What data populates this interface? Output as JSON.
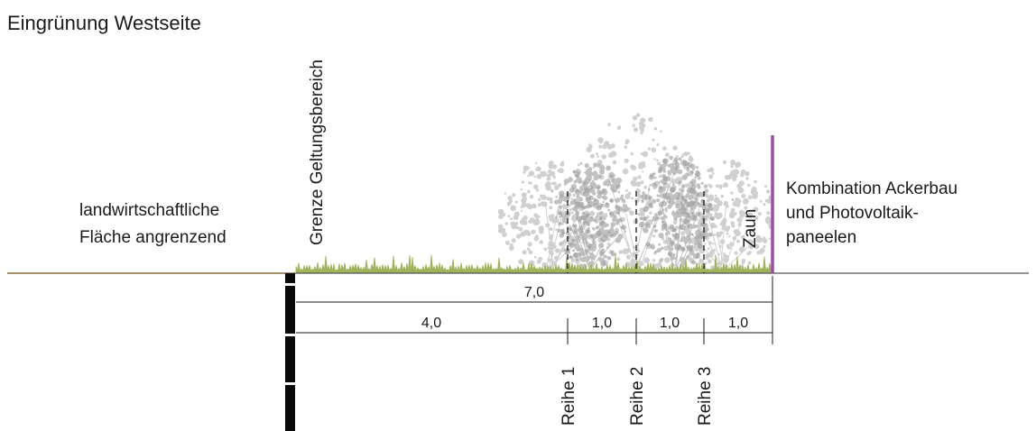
{
  "title": "Eingrünung Westseite",
  "left_label": {
    "line1": "landwirtschaftliche",
    "line2": "Fläche angrenzend"
  },
  "boundary_label": "Grenze Geltungsbereich",
  "fence_label": "Zaun",
  "right_label": {
    "line1": "Kombination Ackerbau",
    "line2": "und Photovoltaik-",
    "line3": "paneelen"
  },
  "dimensions": {
    "total": "7,0",
    "segments": [
      "4,0",
      "1,0",
      "1,0",
      "1,0"
    ]
  },
  "rows": [
    "Reihe 1",
    "Reihe 2",
    "Reihe 3"
  ],
  "colors": {
    "ground_left": "#8a6a3c",
    "ground_right": "#555555",
    "grass": "#9fb35a",
    "tree_light": "#c8c8c8",
    "tree_dark": "#8f8f8f",
    "fence": "#a04ca8",
    "text": "#1a1a1a"
  }
}
